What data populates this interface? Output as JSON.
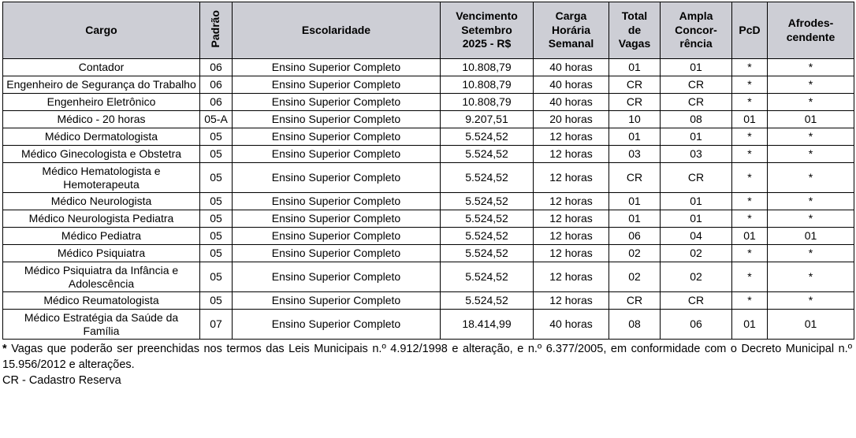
{
  "colors": {
    "header_bg": "#cdced5",
    "border": "#000000",
    "text": "#000000"
  },
  "table": {
    "columns": [
      {
        "key": "cargo",
        "label": "Cargo"
      },
      {
        "key": "padrao",
        "label": "Padrão"
      },
      {
        "key": "escolaridade",
        "label": "Escolaridade"
      },
      {
        "key": "vencimento",
        "label": "Vencimento\nSetembro\n2025 - R$"
      },
      {
        "key": "carga",
        "label": "Carga\nHorária\nSemanal"
      },
      {
        "key": "vagas",
        "label": "Total\nde\nVagas"
      },
      {
        "key": "ampla",
        "label": "Ampla\nConcor-\nrência"
      },
      {
        "key": "pcd",
        "label": "PcD"
      },
      {
        "key": "afro",
        "label": "Afrodes-\ncendente"
      }
    ],
    "rows": [
      [
        "Contador",
        "06",
        "Ensino Superior Completo",
        "10.808,79",
        "40 horas",
        "01",
        "01",
        "*",
        "*"
      ],
      [
        "Engenheiro de Segurança do Trabalho",
        "06",
        "Ensino Superior Completo",
        "10.808,79",
        "40 horas",
        "CR",
        "CR",
        "*",
        "*"
      ],
      [
        "Engenheiro Eletrônico",
        "06",
        "Ensino Superior Completo",
        "10.808,79",
        "40 horas",
        "CR",
        "CR",
        "*",
        "*"
      ],
      [
        "Médico - 20 horas",
        "05-A",
        "Ensino Superior Completo",
        "9.207,51",
        "20 horas",
        "10",
        "08",
        "01",
        "01"
      ],
      [
        "Médico Dermatologista",
        "05",
        "Ensino Superior Completo",
        "5.524,52",
        "12 horas",
        "01",
        "01",
        "*",
        "*"
      ],
      [
        "Médico Ginecologista e Obstetra",
        "05",
        "Ensino Superior Completo",
        "5.524,52",
        "12 horas",
        "03",
        "03",
        "*",
        "*"
      ],
      [
        "Médico Hematologista e Hemoterapeuta",
        "05",
        "Ensino Superior Completo",
        "5.524,52",
        "12 horas",
        "CR",
        "CR",
        "*",
        "*"
      ],
      [
        "Médico Neurologista",
        "05",
        "Ensino Superior Completo",
        "5.524,52",
        "12 horas",
        "01",
        "01",
        "*",
        "*"
      ],
      [
        "Médico Neurologista Pediatra",
        "05",
        "Ensino Superior Completo",
        "5.524,52",
        "12 horas",
        "01",
        "01",
        "*",
        "*"
      ],
      [
        "Médico Pediatra",
        "05",
        "Ensino Superior Completo",
        "5.524,52",
        "12 horas",
        "06",
        "04",
        "01",
        "01"
      ],
      [
        "Médico Psiquiatra",
        "05",
        "Ensino Superior Completo",
        "5.524,52",
        "12 horas",
        "02",
        "02",
        "*",
        "*"
      ],
      [
        "Médico Psiquiatra da Infância e Adolescência",
        "05",
        "Ensino Superior Completo",
        "5.524,52",
        "12 horas",
        "02",
        "02",
        "*",
        "*"
      ],
      [
        "Médico Reumatologista",
        "05",
        "Ensino Superior Completo",
        "5.524,52",
        "12 horas",
        "CR",
        "CR",
        "*",
        "*"
      ],
      [
        "Médico Estratégia da Saúde da Família",
        "07",
        "Ensino Superior Completo",
        "18.414,99",
        "40 horas",
        "08",
        "06",
        "01",
        "01"
      ]
    ]
  },
  "footnotes": {
    "asterisk_marker": "*",
    "asterisk_text": " Vagas que poderão ser preenchidas nos termos das Leis Municipais n.º 4.912/1998 e alteração, e n.º 6.377/2005, em conformidade com o Decreto Municipal n.º 15.956/2012 e alterações.",
    "cr_note": "CR - Cadastro Reserva"
  }
}
